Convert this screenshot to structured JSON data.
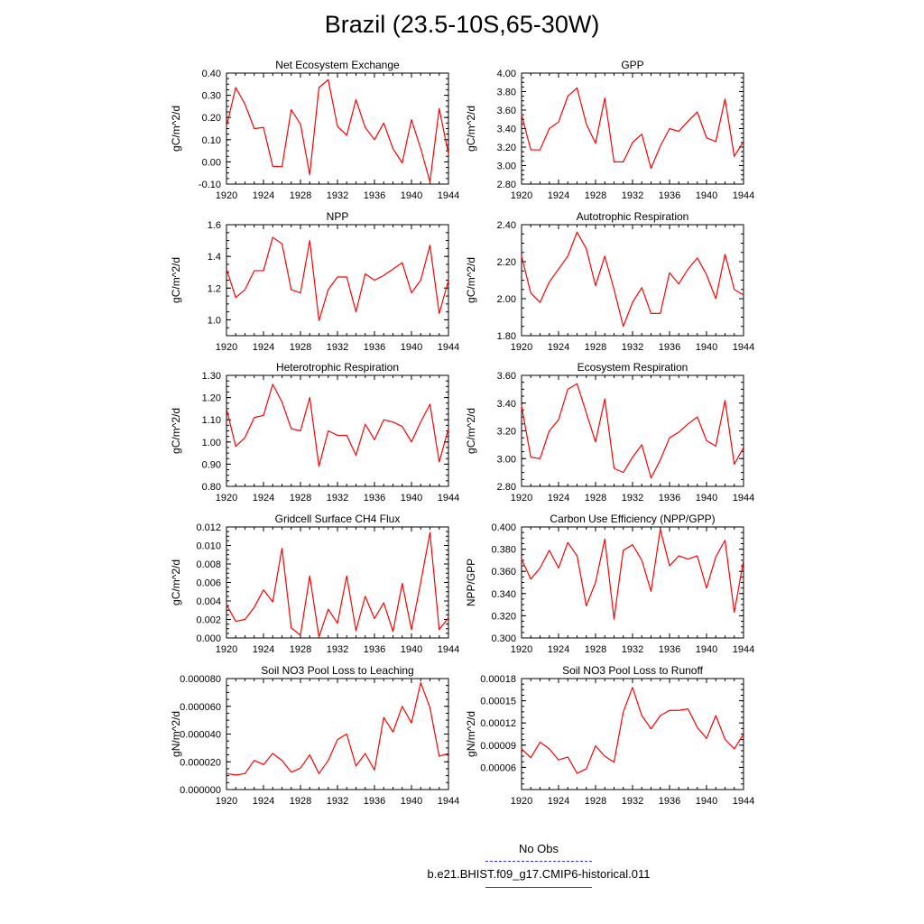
{
  "page": {
    "title": "Brazil (23.5-10S,65-30W)"
  },
  "legend": {
    "obs_label": "No Obs",
    "obs_color": "#3333ff",
    "case_label": "b.e21.BHIST.f09_g17.CMIP6-historical.011",
    "case_color": "#ff0000"
  },
  "chart_data": [
    {
      "type": "line",
      "title": "Net Ecosystem Exchange",
      "ylabel": "gC/m^2/d",
      "xlim": [
        1920,
        1944
      ],
      "ylim": [
        -0.1,
        0.4
      ],
      "x_ticks": [
        1920,
        1924,
        1928,
        1932,
        1936,
        1940,
        1944
      ],
      "y_ticks": [
        -0.1,
        0.0,
        0.1,
        0.2,
        0.3,
        0.4
      ],
      "y_tick_labels": [
        "-0.10",
        "0.00",
        "0.10",
        "0.20",
        "0.30",
        "0.40"
      ],
      "series": [
        {
          "color": "#ff0000",
          "x": [
            1920,
            1921,
            1922,
            1923,
            1924,
            1925,
            1926,
            1927,
            1928,
            1929,
            1930,
            1931,
            1932,
            1933,
            1934,
            1935,
            1936,
            1937,
            1938,
            1939,
            1940,
            1941,
            1942,
            1943,
            1944
          ],
          "values": [
            0.16,
            0.335,
            0.26,
            0.15,
            0.155,
            -0.02,
            -0.022,
            0.235,
            0.17,
            -0.058,
            0.335,
            0.37,
            0.16,
            0.12,
            0.28,
            0.155,
            0.1,
            0.175,
            0.06,
            -0.005,
            0.19,
            0.06,
            -0.09,
            0.24,
            0.035
          ]
        }
      ]
    },
    {
      "type": "line",
      "title": "GPP",
      "ylabel": "gC/m^2/d",
      "xlim": [
        1920,
        1944
      ],
      "ylim": [
        2.8,
        4.0
      ],
      "x_ticks": [
        1920,
        1924,
        1928,
        1932,
        1936,
        1940,
        1944
      ],
      "y_ticks": [
        2.8,
        3.0,
        3.2,
        3.4,
        3.6,
        3.8,
        4.0
      ],
      "y_tick_labels": [
        "2.80",
        "3.00",
        "3.20",
        "3.40",
        "3.60",
        "3.80",
        "4.00"
      ],
      "series": [
        {
          "color": "#ff0000",
          "x": [
            1920,
            1921,
            1922,
            1923,
            1924,
            1925,
            1926,
            1927,
            1928,
            1929,
            1930,
            1931,
            1932,
            1933,
            1934,
            1935,
            1936,
            1937,
            1938,
            1939,
            1940,
            1941,
            1942,
            1943,
            1944
          ],
          "values": [
            3.55,
            3.17,
            3.17,
            3.4,
            3.47,
            3.75,
            3.84,
            3.45,
            3.24,
            3.73,
            3.04,
            3.04,
            3.25,
            3.34,
            2.97,
            3.21,
            3.4,
            3.37,
            3.48,
            3.58,
            3.3,
            3.26,
            3.72,
            3.1,
            3.26
          ]
        }
      ]
    },
    {
      "type": "line",
      "title": "NPP",
      "ylabel": "gC/m^2/d",
      "xlim": [
        1920,
        1944
      ],
      "ylim": [
        0.9,
        1.6
      ],
      "x_ticks": [
        1920,
        1924,
        1928,
        1932,
        1936,
        1940,
        1944
      ],
      "y_ticks": [
        1.0,
        1.2,
        1.4,
        1.6
      ],
      "y_tick_labels": [
        "1.0",
        "1.2",
        "1.4",
        "1.6"
      ],
      "series": [
        {
          "color": "#ff0000",
          "x": [
            1920,
            1921,
            1922,
            1923,
            1924,
            1925,
            1926,
            1927,
            1928,
            1929,
            1930,
            1931,
            1932,
            1933,
            1934,
            1935,
            1936,
            1937,
            1938,
            1939,
            1940,
            1941,
            1942,
            1943,
            1944
          ],
          "values": [
            1.32,
            1.14,
            1.19,
            1.31,
            1.31,
            1.52,
            1.48,
            1.19,
            1.17,
            1.5,
            0.995,
            1.19,
            1.27,
            1.27,
            1.05,
            1.29,
            1.25,
            1.28,
            1.32,
            1.36,
            1.17,
            1.25,
            1.47,
            1.04,
            1.25
          ]
        }
      ]
    },
    {
      "type": "line",
      "title": "Autotrophic Respiration",
      "ylabel": "gC/m^2/d",
      "xlim": [
        1920,
        1944
      ],
      "ylim": [
        1.8,
        2.4
      ],
      "x_ticks": [
        1920,
        1924,
        1928,
        1932,
        1936,
        1940,
        1944
      ],
      "y_ticks": [
        1.8,
        2.0,
        2.2,
        2.4
      ],
      "y_tick_labels": [
        "1.80",
        "2.00",
        "2.20",
        "2.40"
      ],
      "series": [
        {
          "color": "#ff0000",
          "x": [
            1920,
            1921,
            1922,
            1923,
            1924,
            1925,
            1926,
            1927,
            1928,
            1929,
            1930,
            1931,
            1932,
            1933,
            1934,
            1935,
            1936,
            1937,
            1938,
            1939,
            1940,
            1941,
            1942,
            1943,
            1944
          ],
          "values": [
            2.23,
            2.03,
            1.98,
            2.09,
            2.16,
            2.23,
            2.36,
            2.27,
            2.07,
            2.23,
            2.05,
            1.85,
            1.98,
            2.06,
            1.92,
            1.92,
            2.14,
            2.08,
            2.16,
            2.22,
            2.13,
            2.0,
            2.24,
            2.05,
            2.02
          ]
        }
      ]
    },
    {
      "type": "line",
      "title": "Heterotrophic Respiration",
      "ylabel": "gC/m^2/d",
      "xlim": [
        1920,
        1944
      ],
      "ylim": [
        0.8,
        1.3
      ],
      "x_ticks": [
        1920,
        1924,
        1928,
        1932,
        1936,
        1940,
        1944
      ],
      "y_ticks": [
        0.8,
        0.9,
        1.0,
        1.1,
        1.2,
        1.3
      ],
      "y_tick_labels": [
        "0.80",
        "0.90",
        "1.00",
        "1.10",
        "1.20",
        "1.30"
      ],
      "series": [
        {
          "color": "#ff0000",
          "x": [
            1920,
            1921,
            1922,
            1923,
            1924,
            1925,
            1926,
            1927,
            1928,
            1929,
            1930,
            1931,
            1932,
            1933,
            1934,
            1935,
            1936,
            1937,
            1938,
            1939,
            1940,
            1941,
            1942,
            1943,
            1944
          ],
          "values": [
            1.15,
            0.98,
            1.02,
            1.11,
            1.12,
            1.26,
            1.18,
            1.06,
            1.05,
            1.2,
            0.89,
            1.05,
            1.03,
            1.03,
            0.94,
            1.08,
            1.01,
            1.1,
            1.09,
            1.07,
            1.0,
            1.09,
            1.17,
            0.91,
            1.06
          ]
        }
      ]
    },
    {
      "type": "line",
      "title": "Ecosystem Respiration",
      "ylabel": "gC/m^2/d",
      "xlim": [
        1920,
        1944
      ],
      "ylim": [
        2.8,
        3.6
      ],
      "x_ticks": [
        1920,
        1924,
        1928,
        1932,
        1936,
        1940,
        1944
      ],
      "y_ticks": [
        2.8,
        3.0,
        3.2,
        3.4,
        3.6
      ],
      "y_tick_labels": [
        "2.80",
        "3.00",
        "3.20",
        "3.40",
        "3.60"
      ],
      "series": [
        {
          "color": "#ff0000",
          "x": [
            1920,
            1921,
            1922,
            1923,
            1924,
            1925,
            1926,
            1927,
            1928,
            1929,
            1930,
            1931,
            1932,
            1933,
            1934,
            1935,
            1936,
            1937,
            1938,
            1939,
            1940,
            1941,
            1942,
            1943,
            1944
          ],
          "values": [
            3.38,
            3.01,
            3.0,
            3.2,
            3.28,
            3.5,
            3.54,
            3.33,
            3.12,
            3.43,
            2.93,
            2.9,
            3.01,
            3.1,
            2.86,
            2.99,
            3.15,
            3.19,
            3.25,
            3.3,
            3.13,
            3.09,
            3.42,
            2.96,
            3.08
          ]
        }
      ]
    },
    {
      "type": "line",
      "title": "Gridcell Surface CH4 Flux",
      "ylabel": "gC/m^2/d",
      "xlim": [
        1920,
        1944
      ],
      "ylim": [
        0.0,
        0.012
      ],
      "x_ticks": [
        1920,
        1924,
        1928,
        1932,
        1936,
        1940,
        1944
      ],
      "y_ticks": [
        0.0,
        0.002,
        0.004,
        0.006,
        0.008,
        0.01,
        0.012
      ],
      "y_tick_labels": [
        "0.000",
        "0.002",
        "0.004",
        "0.006",
        "0.008",
        "0.010",
        "0.012"
      ],
      "series": [
        {
          "color": "#ff0000",
          "x": [
            1920,
            1921,
            1922,
            1923,
            1924,
            1925,
            1926,
            1927,
            1928,
            1929,
            1930,
            1931,
            1932,
            1933,
            1934,
            1935,
            1936,
            1937,
            1938,
            1939,
            1940,
            1941,
            1942,
            1943,
            1944
          ],
          "values": [
            0.0036,
            0.0018,
            0.002,
            0.0033,
            0.0052,
            0.0039,
            0.0097,
            0.0011,
            0.0003,
            0.0067,
            0.0001,
            0.0031,
            0.0016,
            0.0067,
            0.0008,
            0.0045,
            0.0021,
            0.0038,
            0.0007,
            0.0059,
            0.0009,
            0.006,
            0.0114,
            0.0009,
            0.0022
          ]
        }
      ]
    },
    {
      "type": "line",
      "title": "Carbon Use Efficiency (NPP/GPP)",
      "ylabel": "NPP/GPP",
      "xlim": [
        1920,
        1944
      ],
      "ylim": [
        0.3,
        0.4
      ],
      "x_ticks": [
        1920,
        1924,
        1928,
        1932,
        1936,
        1940,
        1944
      ],
      "y_ticks": [
        0.3,
        0.32,
        0.34,
        0.36,
        0.38,
        0.4
      ],
      "y_tick_labels": [
        "0.300",
        "0.320",
        "0.340",
        "0.360",
        "0.380",
        "0.400"
      ],
      "series": [
        {
          "color": "#ff0000",
          "x": [
            1920,
            1921,
            1922,
            1923,
            1924,
            1925,
            1926,
            1927,
            1928,
            1929,
            1930,
            1931,
            1932,
            1933,
            1934,
            1935,
            1936,
            1937,
            1938,
            1939,
            1940,
            1941,
            1942,
            1943,
            1944
          ],
          "values": [
            0.371,
            0.353,
            0.363,
            0.379,
            0.363,
            0.386,
            0.374,
            0.329,
            0.35,
            0.389,
            0.317,
            0.379,
            0.384,
            0.37,
            0.342,
            0.398,
            0.365,
            0.374,
            0.371,
            0.374,
            0.345,
            0.373,
            0.388,
            0.323,
            0.37
          ]
        }
      ]
    },
    {
      "type": "line",
      "title": "Soil NO3 Pool Loss to Leaching",
      "ylabel": "gN/m^2/d",
      "xlim": [
        1920,
        1944
      ],
      "ylim": [
        0.0,
        8e-05
      ],
      "x_ticks": [
        1920,
        1924,
        1928,
        1932,
        1936,
        1940,
        1944
      ],
      "y_ticks": [
        0.0,
        2e-05,
        4e-05,
        6e-05,
        8e-05
      ],
      "y_tick_labels": [
        "0.000000",
        "0.000020",
        "0.000040",
        "0.000060",
        "0.000080"
      ],
      "series": [
        {
          "color": "#ff0000",
          "x": [
            1920,
            1921,
            1922,
            1923,
            1924,
            1925,
            1926,
            1927,
            1928,
            1929,
            1930,
            1931,
            1932,
            1933,
            1934,
            1935,
            1936,
            1937,
            1938,
            1939,
            1940,
            1941,
            1942,
            1943,
            1944
          ],
          "values": [
            1.15e-05,
            1.05e-05,
            1.15e-05,
            2.1e-05,
            1.8e-05,
            2.6e-05,
            2.1e-05,
            1.25e-05,
            1.55e-05,
            2.5e-05,
            1.15e-05,
            2.1e-05,
            3.6e-05,
            4e-05,
            1.7e-05,
            2.6e-05,
            1.4e-05,
            5.2e-05,
            4.15e-05,
            6e-05,
            4.8e-05,
            7.7e-05,
            5.9e-05,
            2.4e-05,
            2.6e-05
          ]
        }
      ]
    },
    {
      "type": "line",
      "title": "Soil NO3 Pool Loss to Runoff",
      "ylabel": "gN/m^2/d",
      "xlim": [
        1920,
        1944
      ],
      "ylim": [
        3e-05,
        0.00018
      ],
      "x_ticks": [
        1920,
        1924,
        1928,
        1932,
        1936,
        1940,
        1944
      ],
      "y_ticks": [
        6e-05,
        9e-05,
        0.00012,
        0.00015,
        0.00018
      ],
      "y_tick_labels": [
        "0.00006",
        "0.00009",
        "0.00012",
        "0.00015",
        "0.00018"
      ],
      "series": [
        {
          "color": "#ff0000",
          "x": [
            1920,
            1921,
            1922,
            1923,
            1924,
            1925,
            1926,
            1927,
            1928,
            1929,
            1930,
            1931,
            1932,
            1933,
            1934,
            1935,
            1936,
            1937,
            1938,
            1939,
            1940,
            1941,
            1942,
            1943,
            1944
          ],
          "values": [
            8.5e-05,
            7.3e-05,
            9.4e-05,
            8.5e-05,
            7e-05,
            7.4e-05,
            5.2e-05,
            5.8e-05,
            8.9e-05,
            7.5e-05,
            6.7e-05,
            0.000135,
            0.000168,
            0.00013,
            0.000112,
            0.00013,
            0.000137,
            0.000137,
            0.000139,
            0.000114,
            9.9e-05,
            0.00013,
            9.8e-05,
            8.5e-05,
            0.000105
          ]
        }
      ]
    }
  ]
}
